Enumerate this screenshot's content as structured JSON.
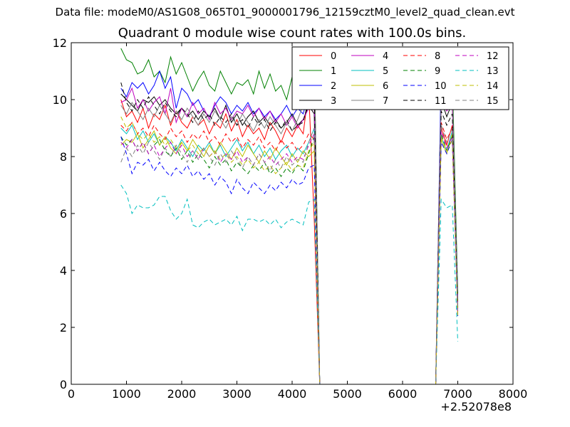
{
  "header": {
    "suptitle": "Data file: modeM0/AS1G08_065T01_9000001796_12159cztM0_level2_quad_clean.evt",
    "title": "Quadrant 0 module wise count rates with 100.0s bins."
  },
  "chart_data": {
    "type": "line",
    "title": "Quadrant 0 module wise count rates with 100.0s bins.",
    "xlabel": "",
    "ylabel": "",
    "x_offset_label": "+2.52078e8",
    "xlim": [
      0,
      8000
    ],
    "ylim": [
      0,
      12
    ],
    "xticks": [
      0,
      1000,
      2000,
      3000,
      4000,
      5000,
      6000,
      7000,
      8000
    ],
    "yticks": [
      0,
      2,
      4,
      6,
      8,
      10,
      12
    ],
    "grid": false,
    "legend": {
      "placement": "top-right",
      "columns": 4
    },
    "series": [
      {
        "name": "0",
        "color": "#ff0000",
        "style": "solid",
        "values": [
          10.0,
          9.4,
          9.6,
          9.2,
          9.7,
          9.0,
          9.5,
          9.3,
          9.8,
          9.1,
          9.6,
          9.2,
          9.0,
          9.4,
          9.1,
          9.3,
          8.8,
          9.2,
          9.0,
          9.5,
          8.9,
          9.3,
          8.7,
          9.1,
          8.8,
          9.0,
          8.6,
          9.2,
          8.9,
          8.5,
          9.0,
          8.7,
          9.1,
          8.8,
          10.3,
          5.8,
          0.0,
          0.0,
          0.0,
          0.0,
          0.0,
          0.0,
          0.0,
          0.0,
          0.0,
          0.0,
          0.0,
          0.0,
          0.0,
          0.0,
          0.0,
          0.0,
          0.0,
          0.0,
          0.0,
          0.0,
          0.0,
          0.0,
          9.0,
          8.4,
          9.1,
          2.4
        ]
      },
      {
        "name": "1",
        "color": "#008000",
        "style": "solid",
        "values": [
          11.8,
          11.4,
          11.3,
          10.9,
          11.0,
          11.4,
          10.8,
          11.0,
          10.6,
          11.5,
          10.9,
          11.3,
          10.8,
          10.3,
          10.7,
          11.0,
          10.5,
          10.3,
          11.0,
          10.6,
          10.2,
          10.6,
          10.5,
          10.7,
          10.2,
          11.0,
          10.4,
          10.9,
          10.3,
          10.5,
          10.0,
          10.8,
          10.4,
          10.2,
          11.7,
          11.8,
          0.0,
          0.0,
          0.0,
          0.0,
          0.0,
          0.0,
          0.0,
          0.0,
          0.0,
          0.0,
          0.0,
          0.0,
          0.0,
          0.0,
          0.0,
          0.0,
          0.0,
          0.0,
          0.0,
          0.0,
          0.0,
          0.0,
          10.8,
          10.0,
          11.0,
          3.2
        ]
      },
      {
        "name": "2",
        "color": "#0000ff",
        "style": "solid",
        "values": [
          10.4,
          10.1,
          10.6,
          10.4,
          10.6,
          10.2,
          10.5,
          11.0,
          10.4,
          10.8,
          9.7,
          10.4,
          10.2,
          9.8,
          10.0,
          9.6,
          9.4,
          9.8,
          10.1,
          9.9,
          9.5,
          9.8,
          9.6,
          9.9,
          9.5,
          9.7,
          9.4,
          9.6,
          9.3,
          9.5,
          9.8,
          9.4,
          9.7,
          9.5,
          10.2,
          10.6,
          0.0,
          0.0,
          0.0,
          0.0,
          0.0,
          0.0,
          0.0,
          0.0,
          0.0,
          0.0,
          0.0,
          0.0,
          0.0,
          0.0,
          0.0,
          0.0,
          0.0,
          0.0,
          0.0,
          0.0,
          0.0,
          0.0,
          11.1,
          10.6,
          10.3,
          2.9
        ]
      },
      {
        "name": "3",
        "color": "#000000",
        "style": "solid",
        "values": [
          10.2,
          10.0,
          9.8,
          9.6,
          10.0,
          9.9,
          10.1,
          9.8,
          10.0,
          9.7,
          9.5,
          9.7,
          9.4,
          9.6,
          9.3,
          9.6,
          9.4,
          9.7,
          9.3,
          9.8,
          9.2,
          9.5,
          9.1,
          9.4,
          9.6,
          9.2,
          9.4,
          9.1,
          9.3,
          9.0,
          9.2,
          9.5,
          9.1,
          9.3,
          9.8,
          9.5,
          0.0,
          0.0,
          0.0,
          0.0,
          0.0,
          0.0,
          0.0,
          0.0,
          0.0,
          0.0,
          0.0,
          0.0,
          0.0,
          0.0,
          0.0,
          0.0,
          0.0,
          0.0,
          0.0,
          0.0,
          0.0,
          0.0,
          10.0,
          9.4,
          9.9,
          2.9
        ]
      },
      {
        "name": "4",
        "color": "#bf00bf",
        "style": "solid",
        "values": [
          9.9,
          10.0,
          10.4,
          9.7,
          10.0,
          9.6,
          9.9,
          10.1,
          9.5,
          10.4,
          9.2,
          9.7,
          9.4,
          9.9,
          9.5,
          9.7,
          9.3,
          9.9,
          9.5,
          9.7,
          9.3,
          9.6,
          9.5,
          9.8,
          9.4,
          9.7,
          9.3,
          9.6,
          9.2,
          9.5,
          9.1,
          9.4,
          9.0,
          9.3,
          9.7,
          9.9,
          0.0,
          0.0,
          0.0,
          0.0,
          0.0,
          0.0,
          0.0,
          0.0,
          0.0,
          0.0,
          0.0,
          0.0,
          0.0,
          0.0,
          0.0,
          0.0,
          0.0,
          0.0,
          0.0,
          0.0,
          0.0,
          0.0,
          10.2,
          9.6,
          9.9,
          2.7
        ]
      },
      {
        "name": "5",
        "color": "#00bfbf",
        "style": "solid",
        "values": [
          9.0,
          8.8,
          9.1,
          8.6,
          8.9,
          8.5,
          8.8,
          8.4,
          8.7,
          8.5,
          8.2,
          8.6,
          8.3,
          8.0,
          8.4,
          8.2,
          8.5,
          8.1,
          8.4,
          8.0,
          8.3,
          8.6,
          8.2,
          8.5,
          8.1,
          8.4,
          8.0,
          8.3,
          7.9,
          8.2,
          8.4,
          8.0,
          8.3,
          8.1,
          8.5,
          9.0,
          0.0,
          0.0,
          0.0,
          0.0,
          0.0,
          0.0,
          0.0,
          0.0,
          0.0,
          0.0,
          0.0,
          0.0,
          0.0,
          0.0,
          0.0,
          0.0,
          0.0,
          0.0,
          0.0,
          0.0,
          0.0,
          0.0,
          8.7,
          8.2,
          8.9,
          2.6
        ]
      },
      {
        "name": "6",
        "color": "#bfbf00",
        "style": "solid",
        "values": [
          8.4,
          8.6,
          8.5,
          8.8,
          8.3,
          8.6,
          8.9,
          8.4,
          8.7,
          8.3,
          8.1,
          8.5,
          8.2,
          8.6,
          8.3,
          8.0,
          8.4,
          8.1,
          8.5,
          8.2,
          7.9,
          8.3,
          8.0,
          8.4,
          8.1,
          7.8,
          8.2,
          7.9,
          8.3,
          8.0,
          7.7,
          8.1,
          7.8,
          8.2,
          8.0,
          8.2,
          0.0,
          0.0,
          0.0,
          0.0,
          0.0,
          0.0,
          0.0,
          0.0,
          0.0,
          0.0,
          0.0,
          0.0,
          0.0,
          0.0,
          0.0,
          0.0,
          0.0,
          0.0,
          0.0,
          0.0,
          0.0,
          0.0,
          8.6,
          8.1,
          8.8,
          2.5
        ]
      },
      {
        "name": "7",
        "color": "#808080",
        "style": "solid",
        "values": [
          9.8,
          9.5,
          9.9,
          9.6,
          9.3,
          9.7,
          9.4,
          9.8,
          9.5,
          9.2,
          9.6,
          9.3,
          9.7,
          9.4,
          9.1,
          9.5,
          9.2,
          9.6,
          9.3,
          9.0,
          9.4,
          9.1,
          9.5,
          9.2,
          8.9,
          9.3,
          9.0,
          9.4,
          9.1,
          8.8,
          9.2,
          8.9,
          9.3,
          9.8,
          10.8,
          11.6,
          0.0,
          0.0,
          0.0,
          0.0,
          0.0,
          0.0,
          0.0,
          0.0,
          0.0,
          0.0,
          0.0,
          0.0,
          0.0,
          0.0,
          0.0,
          0.0,
          0.0,
          0.0,
          0.0,
          0.0,
          0.0,
          0.0,
          10.4,
          9.8,
          10.5,
          2.8
        ]
      },
      {
        "name": "8",
        "color": "#ff0000",
        "style": "dashed",
        "values": [
          9.1,
          8.9,
          9.2,
          8.8,
          9.0,
          8.7,
          9.1,
          8.8,
          8.6,
          9.0,
          8.7,
          8.9,
          8.5,
          8.8,
          8.6,
          8.9,
          8.5,
          8.7,
          8.4,
          8.8,
          8.5,
          8.7,
          8.3,
          8.6,
          8.4,
          8.7,
          8.3,
          8.5,
          8.2,
          8.6,
          8.3,
          8.5,
          8.2,
          8.4,
          8.8,
          8.6,
          0.0,
          0.0,
          0.0,
          0.0,
          0.0,
          0.0,
          0.0,
          0.0,
          0.0,
          0.0,
          0.0,
          0.0,
          0.0,
          0.0,
          0.0,
          0.0,
          0.0,
          0.0,
          0.0,
          0.0,
          0.0,
          0.0,
          9.2,
          8.6,
          9.0,
          2.6
        ]
      },
      {
        "name": "9",
        "color": "#008000",
        "style": "dashed",
        "values": [
          8.7,
          8.4,
          8.6,
          8.2,
          8.5,
          8.1,
          8.4,
          8.6,
          8.2,
          8.0,
          8.3,
          7.9,
          8.2,
          7.8,
          8.1,
          7.9,
          7.6,
          8.0,
          7.7,
          7.9,
          7.5,
          7.8,
          7.6,
          7.4,
          7.7,
          7.5,
          7.8,
          7.4,
          7.6,
          7.3,
          7.6,
          7.4,
          7.7,
          7.5,
          8.1,
          8.7,
          0.0,
          0.0,
          0.0,
          0.0,
          0.0,
          0.0,
          0.0,
          0.0,
          0.0,
          0.0,
          0.0,
          0.0,
          0.0,
          0.0,
          0.0,
          0.0,
          0.0,
          0.0,
          0.0,
          0.0,
          0.0,
          0.0,
          8.8,
          8.2,
          8.7,
          2.5
        ]
      },
      {
        "name": "10",
        "color": "#0000ff",
        "style": "dashed",
        "values": [
          8.7,
          8.1,
          7.4,
          7.8,
          7.7,
          7.9,
          7.5,
          7.8,
          7.5,
          7.3,
          7.6,
          7.4,
          7.7,
          7.3,
          7.5,
          7.2,
          7.4,
          7.0,
          7.3,
          7.1,
          6.7,
          7.2,
          6.9,
          6.7,
          7.1,
          6.9,
          6.7,
          7.0,
          6.8,
          7.1,
          6.9,
          7.2,
          7.0,
          7.1,
          7.6,
          7.7,
          0.0,
          0.0,
          0.0,
          0.0,
          0.0,
          0.0,
          0.0,
          0.0,
          0.0,
          0.0,
          0.0,
          0.0,
          0.0,
          0.0,
          0.0,
          0.0,
          0.0,
          0.0,
          0.0,
          0.0,
          0.0,
          0.0,
          8.5,
          8.1,
          8.6,
          2.4
        ]
      },
      {
        "name": "11",
        "color": "#000000",
        "style": "dashed",
        "values": [
          10.6,
          9.9,
          9.6,
          10.0,
          9.7,
          10.1,
          9.8,
          9.5,
          9.9,
          9.6,
          9.4,
          9.7,
          9.5,
          9.2,
          9.6,
          9.3,
          9.5,
          9.1,
          9.4,
          9.2,
          9.5,
          9.1,
          9.3,
          9.0,
          9.4,
          9.1,
          9.3,
          8.9,
          9.2,
          9.0,
          9.3,
          8.9,
          9.1,
          9.2,
          10.0,
          10.3,
          0.0,
          0.0,
          0.0,
          0.0,
          0.0,
          0.0,
          0.0,
          0.0,
          0.0,
          0.0,
          0.0,
          0.0,
          0.0,
          0.0,
          0.0,
          0.0,
          0.0,
          0.0,
          0.0,
          0.0,
          0.0,
          0.0,
          9.6,
          9.1,
          9.5,
          2.7
        ]
      },
      {
        "name": "12",
        "color": "#bf00bf",
        "style": "dashed",
        "values": [
          8.5,
          8.3,
          8.6,
          8.2,
          8.5,
          8.1,
          8.4,
          8.0,
          8.3,
          8.5,
          8.1,
          8.4,
          8.0,
          8.2,
          7.9,
          8.3,
          8.0,
          8.2,
          7.8,
          8.1,
          7.9,
          8.2,
          7.8,
          8.0,
          7.7,
          8.1,
          7.8,
          8.0,
          7.7,
          7.9,
          8.1,
          7.8,
          8.0,
          7.9,
          8.4,
          8.8,
          0.0,
          0.0,
          0.0,
          0.0,
          0.0,
          0.0,
          0.0,
          0.0,
          0.0,
          0.0,
          0.0,
          0.0,
          0.0,
          0.0,
          0.0,
          0.0,
          0.0,
          0.0,
          0.0,
          0.0,
          0.0,
          0.0,
          8.9,
          8.3,
          8.7,
          2.5
        ]
      },
      {
        "name": "13",
        "color": "#00bfbf",
        "style": "dashed",
        "values": [
          7.0,
          6.7,
          6.0,
          6.3,
          6.2,
          6.2,
          6.3,
          6.6,
          6.6,
          6.1,
          5.8,
          6.0,
          6.5,
          5.6,
          5.5,
          5.7,
          5.8,
          5.6,
          5.7,
          5.8,
          5.6,
          5.9,
          5.4,
          5.8,
          5.8,
          5.7,
          5.8,
          5.6,
          5.8,
          5.5,
          5.7,
          5.8,
          5.7,
          5.6,
          6.4,
          6.5,
          0.0,
          0.0,
          0.0,
          0.0,
          0.0,
          0.0,
          0.0,
          0.0,
          0.0,
          0.0,
          0.0,
          0.0,
          0.0,
          0.0,
          0.0,
          0.0,
          0.0,
          0.0,
          0.0,
          0.0,
          0.0,
          0.0,
          6.5,
          6.2,
          6.3,
          1.5
        ]
      },
      {
        "name": "14",
        "color": "#bfbf00",
        "style": "dashed",
        "values": [
          9.4,
          9.0,
          9.2,
          8.8,
          8.6,
          8.8,
          8.5,
          8.7,
          8.4,
          8.6,
          8.3,
          8.5,
          8.2,
          8.4,
          8.1,
          8.3,
          8.0,
          8.2,
          7.9,
          8.1,
          7.8,
          8.0,
          7.7,
          7.9,
          7.6,
          7.8,
          7.5,
          7.7,
          7.4,
          7.6,
          7.8,
          7.5,
          7.7,
          7.6,
          8.2,
          8.5,
          0.0,
          0.0,
          0.0,
          0.0,
          0.0,
          0.0,
          0.0,
          0.0,
          0.0,
          0.0,
          0.0,
          0.0,
          0.0,
          0.0,
          0.0,
          0.0,
          0.0,
          0.0,
          0.0,
          0.0,
          0.0,
          0.0,
          8.7,
          8.2,
          8.6,
          2.4
        ]
      },
      {
        "name": "15",
        "color": "#808080",
        "style": "dashed",
        "values": [
          7.8,
          8.3,
          8.0,
          8.4,
          8.1,
          8.5,
          8.2,
          7.9,
          8.3,
          8.0,
          8.4,
          8.1,
          7.8,
          8.2,
          7.9,
          8.3,
          8.0,
          7.7,
          8.1,
          7.8,
          8.2,
          7.9,
          7.6,
          8.0,
          7.7,
          8.1,
          7.8,
          7.5,
          7.9,
          7.6,
          8.0,
          7.7,
          7.9,
          7.8,
          8.5,
          9.0,
          0.0,
          0.0,
          0.0,
          0.0,
          0.0,
          0.0,
          0.0,
          0.0,
          0.0,
          0.0,
          0.0,
          0.0,
          0.0,
          0.0,
          0.0,
          0.0,
          0.0,
          0.0,
          0.0,
          0.0,
          0.0,
          0.0,
          9.1,
          8.5,
          9.0,
          2.6
        ]
      }
    ]
  }
}
